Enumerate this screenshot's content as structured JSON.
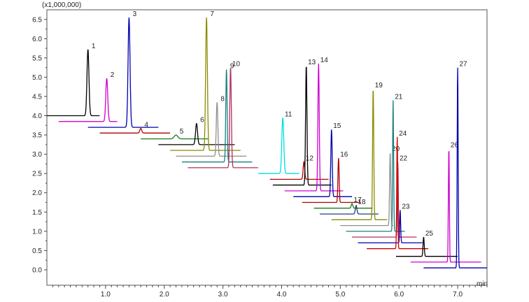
{
  "chart_data": {
    "type": "line",
    "title": "",
    "y_scale_label": "(x1,000,000)",
    "x_unit_label": "min",
    "xlim": [
      0.0,
      7.5
    ],
    "ylim": [
      -0.4,
      6.75
    ],
    "x_ticks": [
      1.0,
      2.0,
      3.0,
      4.0,
      5.0,
      6.0,
      7.0
    ],
    "x_tick_labels": [
      "1.0",
      "2.0",
      "3.0",
      "4.0",
      "5.0",
      "6.0",
      "7.0"
    ],
    "y_ticks": [
      0.0,
      0.5,
      1.0,
      1.5,
      2.0,
      2.5,
      3.0,
      3.5,
      4.0,
      4.5,
      5.0,
      5.5,
      6.0,
      6.5
    ],
    "y_tick_labels": [
      "0.0",
      "0.5",
      "1.0",
      "1.5",
      "2.0",
      "2.5",
      "3.0",
      "3.5",
      "4.0",
      "4.5",
      "5.0",
      "5.5",
      "6.0",
      "6.5"
    ],
    "grid": false,
    "legend": "none",
    "series": [
      {
        "label": "1",
        "color": "#000000",
        "baseline": 4.0,
        "x_start": -0.05,
        "x_end": 0.9,
        "peaks": [
          {
            "x": 0.7,
            "height": 1.72,
            "width": 0.05
          }
        ]
      },
      {
        "label": "2",
        "color": "#d000d0",
        "baseline": 3.85,
        "x_start": 0.2,
        "x_end": 1.2,
        "peaks": [
          {
            "x": 1.02,
            "height": 1.12,
            "width": 0.05
          }
        ]
      },
      {
        "label": "3",
        "color": "#0000b0",
        "baseline": 3.7,
        "x_start": 0.7,
        "x_end": 1.9,
        "peaks": [
          {
            "x": 1.4,
            "height": 2.85,
            "width": 0.05
          }
        ]
      },
      {
        "label": "4",
        "color": "#b00000",
        "baseline": 3.55,
        "x_start": 0.9,
        "x_end": 2.1,
        "peaks": [
          {
            "x": 1.6,
            "height": 0.12,
            "width": 0.05
          }
        ]
      },
      {
        "label": "5",
        "color": "#1a7a1a",
        "baseline": 3.4,
        "x_start": 1.6,
        "x_end": 2.75,
        "peaks": [
          {
            "x": 2.2,
            "height": 0.1,
            "width": 0.09
          }
        ]
      },
      {
        "label": "6",
        "color": "#000000",
        "baseline": 3.25,
        "x_start": 1.9,
        "x_end": 3.2,
        "peaks": [
          {
            "x": 2.55,
            "height": 0.55,
            "width": 0.05
          }
        ]
      },
      {
        "label": "7",
        "color": "#8c8c00",
        "baseline": 3.1,
        "x_start": 2.1,
        "x_end": 3.3,
        "peaks": [
          {
            "x": 2.72,
            "height": 3.45,
            "width": 0.045
          }
        ]
      },
      {
        "label": "8",
        "color": "#909090",
        "baseline": 2.95,
        "x_start": 2.2,
        "x_end": 3.4,
        "peaks": [
          {
            "x": 2.9,
            "height": 1.4,
            "width": 0.04
          }
        ]
      },
      {
        "label": "9",
        "color": "#1a8080",
        "baseline": 2.8,
        "x_start": 2.3,
        "x_end": 3.5,
        "peaks": [
          {
            "x": 3.06,
            "height": 2.4,
            "width": 0.035
          }
        ]
      },
      {
        "label": "10",
        "color": "#b03060",
        "baseline": 2.65,
        "x_start": 2.4,
        "x_end": 3.6,
        "peaks": [
          {
            "x": 3.13,
            "height": 2.6,
            "width": 0.04
          }
        ]
      },
      {
        "label": "11",
        "color": "#00e0e0",
        "baseline": 2.5,
        "x_start": 3.6,
        "x_end": 4.3,
        "peaks": [
          {
            "x": 4.02,
            "height": 1.45,
            "width": 0.05
          }
        ]
      },
      {
        "label": "12",
        "color": "#b00000",
        "baseline": 2.35,
        "x_start": 3.8,
        "x_end": 4.8,
        "peaks": [
          {
            "x": 4.38,
            "height": 0.45,
            "width": 0.04
          }
        ]
      },
      {
        "label": "13",
        "color": "#000000",
        "baseline": 2.2,
        "x_start": 3.85,
        "x_end": 4.85,
        "peaks": [
          {
            "x": 4.42,
            "height": 3.1,
            "width": 0.035
          }
        ]
      },
      {
        "label": "14",
        "color": "#d000d0",
        "baseline": 2.05,
        "x_start": 4.05,
        "x_end": 5.05,
        "peaks": [
          {
            "x": 4.63,
            "height": 3.3,
            "width": 0.035
          }
        ]
      },
      {
        "label": "15",
        "color": "#0000b0",
        "baseline": 1.9,
        "x_start": 4.2,
        "x_end": 5.2,
        "peaks": [
          {
            "x": 4.85,
            "height": 1.75,
            "width": 0.035
          }
        ]
      },
      {
        "label": "16",
        "color": "#b00000",
        "baseline": 1.75,
        "x_start": 4.35,
        "x_end": 5.35,
        "peaks": [
          {
            "x": 4.97,
            "height": 1.15,
            "width": 0.03
          }
        ]
      },
      {
        "label": "17",
        "color": "#1a7a1a",
        "baseline": 1.6,
        "x_start": 4.55,
        "x_end": 5.55,
        "peaks": [
          {
            "x": 5.2,
            "height": 0.12,
            "width": 0.04
          }
        ]
      },
      {
        "label": "18",
        "color": "#1a4080",
        "baseline": 1.45,
        "x_start": 4.65,
        "x_end": 5.65,
        "peaks": [
          {
            "x": 5.27,
            "height": 0.22,
            "width": 0.04
          }
        ]
      },
      {
        "label": "19",
        "color": "#8c8c00",
        "baseline": 1.3,
        "x_start": 4.85,
        "x_end": 5.8,
        "peaks": [
          {
            "x": 5.56,
            "height": 3.4,
            "width": 0.03
          }
        ]
      },
      {
        "label": "20",
        "color": "#909090",
        "baseline": 1.15,
        "x_start": 5.0,
        "x_end": 5.9,
        "peaks": [
          {
            "x": 5.85,
            "height": 1.9,
            "width": 0.03
          }
        ]
      },
      {
        "label": "21",
        "color": "#1a8080",
        "baseline": 1.0,
        "x_start": 5.1,
        "x_end": 6.1,
        "peaks": [
          {
            "x": 5.9,
            "height": 3.4,
            "width": 0.025
          }
        ]
      },
      {
        "label": "22",
        "color": "#b03060",
        "baseline": 0.85,
        "x_start": 5.2,
        "x_end": 6.3,
        "peaks": [
          {
            "x": 5.98,
            "height": 1.95,
            "width": 0.025
          }
        ]
      },
      {
        "label": "23",
        "color": "#0000b0",
        "baseline": 0.7,
        "x_start": 5.3,
        "x_end": 6.4,
        "peaks": [
          {
            "x": 6.02,
            "height": 0.85,
            "width": 0.025
          }
        ]
      },
      {
        "label": "24",
        "color": "#d00000",
        "baseline": 0.55,
        "x_start": 5.45,
        "x_end": 6.5,
        "peaks": [
          {
            "x": 5.97,
            "height": 2.9,
            "width": 0.025
          }
        ]
      },
      {
        "label": "25",
        "color": "#000000",
        "baseline": 0.35,
        "x_start": 5.95,
        "x_end": 7.0,
        "peaks": [
          {
            "x": 6.42,
            "height": 0.5,
            "width": 0.03
          }
        ]
      },
      {
        "label": "26",
        "color": "#d000d0",
        "baseline": 0.2,
        "x_start": 6.2,
        "x_end": 7.4,
        "peaks": [
          {
            "x": 6.85,
            "height": 2.95,
            "width": 0.025
          }
        ]
      },
      {
        "label": "27",
        "color": "#0000b0",
        "baseline": 0.05,
        "x_start": 6.42,
        "x_end": 7.5,
        "peaks": [
          {
            "x": 7.0,
            "height": 5.2,
            "width": 0.025
          }
        ]
      }
    ]
  }
}
